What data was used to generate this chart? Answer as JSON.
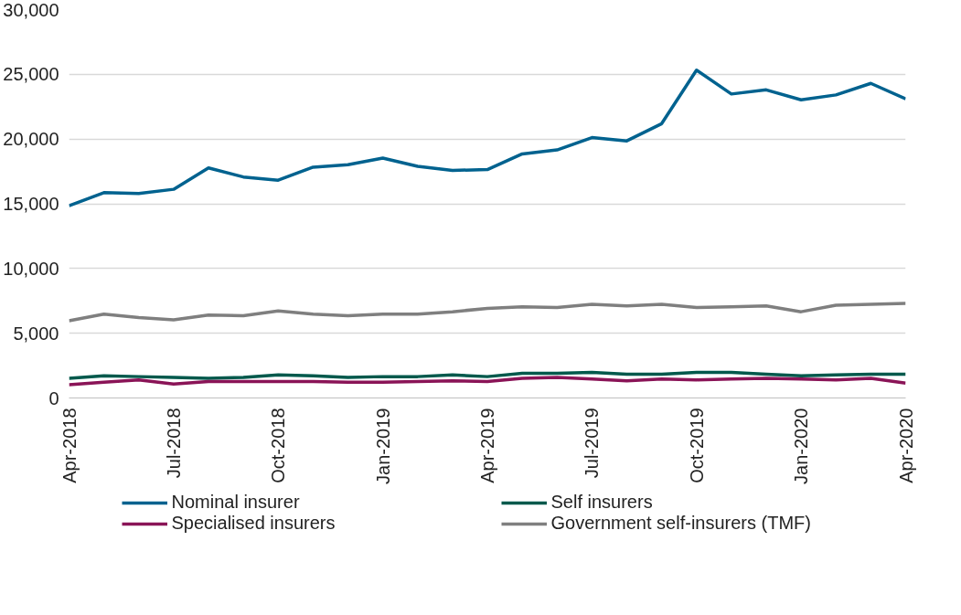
{
  "chart_data": {
    "type": "line",
    "x": [
      "2018-04",
      "2018-05",
      "2018-06",
      "2018-07",
      "2018-08",
      "2018-09",
      "2018-10",
      "2018-11",
      "2018-12",
      "2019-01",
      "2019-02",
      "2019-03",
      "2019-04",
      "2019-05",
      "2019-06",
      "2019-07",
      "2019-08",
      "2019-09",
      "2019-10",
      "2019-11",
      "2019-12",
      "2020-01",
      "2020-02",
      "2020-03",
      "2020-04"
    ],
    "series": [
      {
        "name": "Nominal insurer",
        "color": "#00628f",
        "values": [
          14850,
          15860,
          15800,
          16120,
          17770,
          17070,
          16820,
          17830,
          18020,
          18530,
          17890,
          17580,
          17640,
          18850,
          19160,
          20110,
          19860,
          21190,
          25320,
          23480,
          23800,
          23030,
          23410,
          24300,
          23100
        ]
      },
      {
        "name": "Self insurers",
        "color": "#00594c",
        "values": [
          1520,
          1710,
          1650,
          1590,
          1520,
          1590,
          1780,
          1710,
          1590,
          1650,
          1650,
          1780,
          1650,
          1900,
          1900,
          1970,
          1840,
          1840,
          1970,
          1970,
          1840,
          1710,
          1780,
          1840,
          1840
        ]
      },
      {
        "name": "Specialised insurers",
        "color": "#8a1457",
        "values": [
          1020,
          1210,
          1400,
          1080,
          1270,
          1270,
          1270,
          1270,
          1210,
          1210,
          1270,
          1330,
          1270,
          1520,
          1590,
          1460,
          1330,
          1460,
          1400,
          1460,
          1520,
          1460,
          1400,
          1520,
          1140
        ]
      },
      {
        "name": "Government self-insurers (TMF)",
        "color": "#7f7f7f",
        "values": [
          5960,
          6470,
          6220,
          6030,
          6410,
          6350,
          6730,
          6470,
          6350,
          6470,
          6470,
          6660,
          6920,
          7040,
          6980,
          7230,
          7110,
          7230,
          6980,
          7040,
          7110,
          6660,
          7170,
          7230,
          7300
        ]
      }
    ],
    "xlim": [
      "2018-04",
      "2020-04"
    ],
    "xticks": [
      {
        "value": "2018-04",
        "label": "Apr-2018"
      },
      {
        "value": "2018-07",
        "label": "Jul-2018"
      },
      {
        "value": "2018-10",
        "label": "Oct-2018"
      },
      {
        "value": "2019-01",
        "label": "Jan-2019"
      },
      {
        "value": "2019-04",
        "label": "Apr-2019"
      },
      {
        "value": "2019-07",
        "label": "Jul-2019"
      },
      {
        "value": "2019-10",
        "label": "Oct-2019"
      },
      {
        "value": "2020-01",
        "label": "Jan-2020"
      },
      {
        "value": "2020-04",
        "label": "Apr-2020"
      }
    ],
    "ylim": [
      0,
      30000
    ],
    "yticks": [
      {
        "value": 0,
        "label": "0"
      },
      {
        "value": 5000,
        "label": "5,000"
      },
      {
        "value": 10000,
        "label": "10,000"
      },
      {
        "value": 15000,
        "label": "15,000"
      },
      {
        "value": 20000,
        "label": "20,000"
      },
      {
        "value": 25000,
        "label": "25,000"
      },
      {
        "value": 30000,
        "label": "30,000"
      }
    ],
    "grid": "y",
    "legend": "bottom",
    "marker": "none",
    "line_style": "solid"
  }
}
